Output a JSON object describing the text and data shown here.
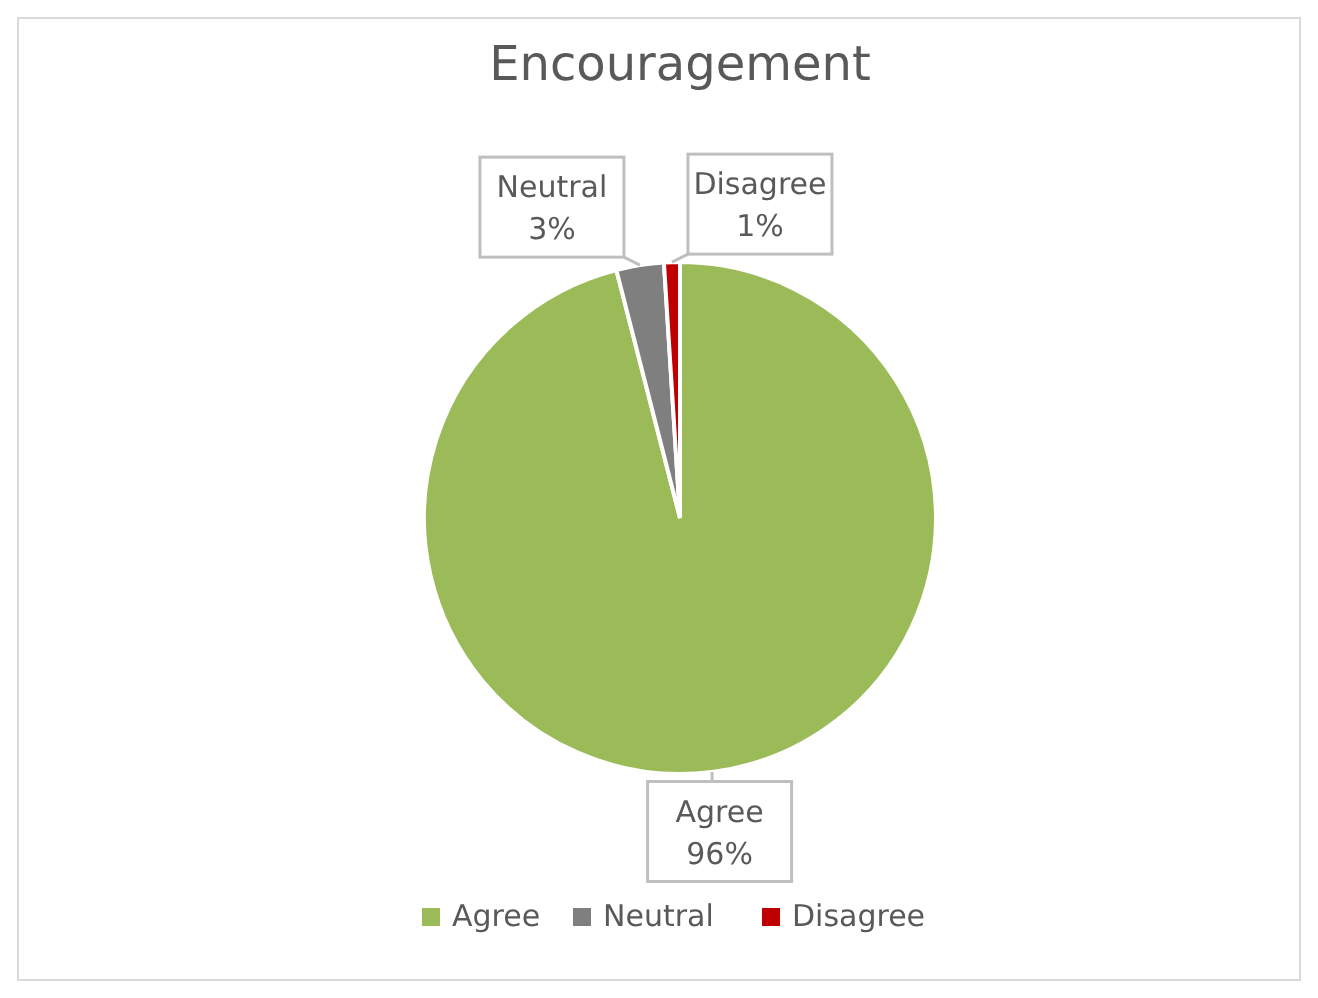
{
  "chart_data": {
    "type": "pie",
    "title": "Encouragement",
    "categories": [
      "Agree",
      "Neutral",
      "Disagree"
    ],
    "values": [
      96,
      3,
      1
    ],
    "colors": [
      "#9bbb59",
      "#7f7f7f",
      "#c00000"
    ],
    "value_labels": [
      "96%",
      "3%",
      "1%"
    ],
    "legend": "bottom"
  }
}
